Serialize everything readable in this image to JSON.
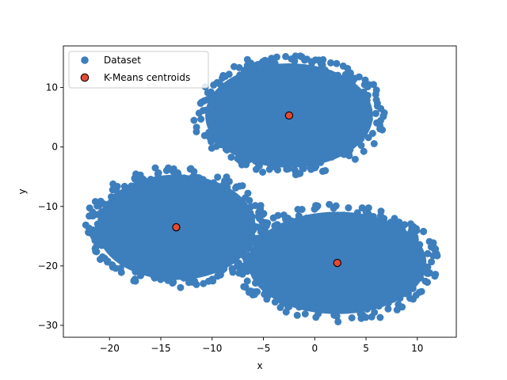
{
  "chart_data": {
    "type": "scatter",
    "title": "",
    "xlabel": "x",
    "ylabel": "y",
    "xlim": [
      -24.5,
      13.8
    ],
    "ylim": [
      -32.0,
      17.0
    ],
    "xticks": [
      -20,
      -15,
      -10,
      -5,
      0,
      5,
      10
    ],
    "yticks": [
      10,
      0,
      -10,
      -20,
      -30
    ],
    "xtick_labels": [
      "−20",
      "−15",
      "−10",
      "−5",
      "0",
      "5",
      "10"
    ],
    "ytick_labels": [
      "10",
      "0",
      "−10",
      "−20",
      "−30"
    ],
    "grid": false,
    "legend_position": "upper-left",
    "series": [
      {
        "name": "Dataset",
        "color": "#3d7ebd",
        "kind": "point-cloud",
        "clusters": [
          {
            "center": [
              -2.5,
              5.3
            ],
            "x_range": [
              -12.0,
              7.0
            ],
            "y_range": [
              -4.5,
              15.5
            ]
          },
          {
            "center": [
              -13.5,
              -13.5
            ],
            "x_range": [
              -22.5,
              -4.5
            ],
            "y_range": [
              -23.8,
              -4.0
            ]
          },
          {
            "center": [
              2.2,
              -19.5
            ],
            "x_range": [
              -7.5,
              12.3
            ],
            "y_range": [
              -29.5,
              -9.8
            ]
          }
        ]
      },
      {
        "name": "K-Means centroids",
        "color": "#e24a33",
        "edge_color": "#000000",
        "points": [
          {
            "x": -2.5,
            "y": 5.3
          },
          {
            "x": -13.5,
            "y": -13.5
          },
          {
            "x": 2.2,
            "y": -19.5
          }
        ]
      }
    ]
  }
}
